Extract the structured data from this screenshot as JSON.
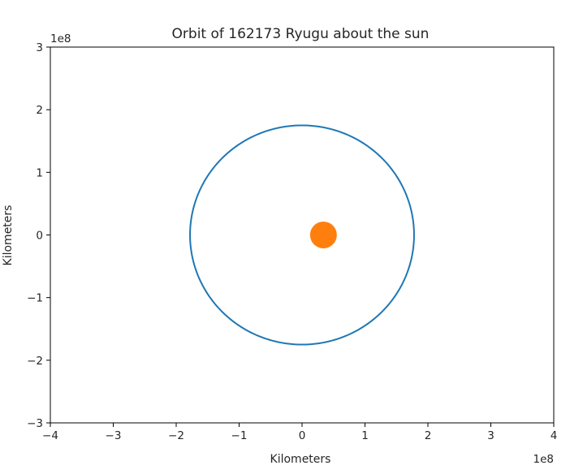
{
  "chart_data": {
    "type": "line",
    "title": "Orbit of 162173 Ryugu about the sun",
    "xlabel": "Kilometers",
    "ylabel": "Kilometers",
    "x_offset_label": "1e8",
    "y_offset_label": "1e8",
    "xlim": [
      -4,
      4
    ],
    "ylim": [
      -3,
      3
    ],
    "x_ticks": [
      -4,
      -3,
      -2,
      -1,
      0,
      1,
      2,
      3,
      4
    ],
    "y_ticks": [
      -3,
      -2,
      -1,
      0,
      1,
      2,
      3
    ],
    "x_tick_labels": [
      "−4",
      "−3",
      "−2",
      "−1",
      "0",
      "1",
      "2",
      "3",
      "4"
    ],
    "y_tick_labels": [
      "−3",
      "−2",
      "−1",
      "0",
      "1",
      "2",
      "3"
    ],
    "grid": false,
    "series": [
      {
        "kind": "orbit-ellipse",
        "color": "#1f77b4",
        "center": [
          0.0,
          0.0
        ],
        "semi_axis_x": 1.78,
        "semi_axis_y": 1.75
      },
      {
        "kind": "point",
        "color": "#ff7f0e",
        "x": 0.34,
        "y": 0.0
      }
    ]
  }
}
